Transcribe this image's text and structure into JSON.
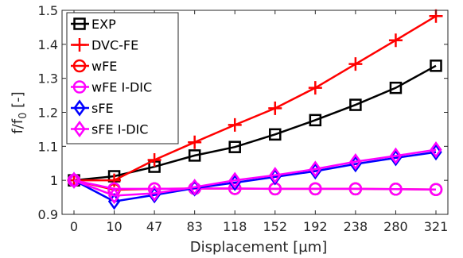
{
  "chart_data": {
    "type": "line",
    "xlabel": "Displacement [µm]",
    "ylabel": "f/f",
    "ylabel_subscript": "0",
    "ylabel_suffix": " [-]",
    "categories": [
      "0",
      "10",
      "47",
      "83",
      "118",
      "152",
      "192",
      "238",
      "280",
      "321"
    ],
    "ylim": [
      0.9,
      1.5
    ],
    "yticks": [
      "0.9",
      "1",
      "1.1",
      "1.2",
      "1.3",
      "1.4",
      "1.5"
    ],
    "grid": false,
    "legend_position": "top-left",
    "series": [
      {
        "name": "EXP",
        "color": "#000000",
        "marker": "square",
        "values": [
          1.0,
          1.012,
          1.04,
          1.073,
          1.098,
          1.135,
          1.177,
          1.222,
          1.272,
          1.337
        ]
      },
      {
        "name": "DVC-FE",
        "color": "#ff0000",
        "marker": "plus",
        "values": [
          1.0,
          1.0,
          1.06,
          1.112,
          1.163,
          1.212,
          1.272,
          1.342,
          1.412,
          1.483
        ]
      },
      {
        "name": "wFE",
        "color": "#ff0000",
        "marker": "circle",
        "values": [
          1.0,
          0.972,
          0.975,
          0.976,
          0.976,
          0.975,
          0.975,
          0.975,
          0.974,
          0.973
        ]
      },
      {
        "name": "wFE I-DIC",
        "color": "#ff00ff",
        "marker": "circle",
        "values": [
          1.0,
          0.975,
          0.975,
          0.976,
          0.976,
          0.975,
          0.975,
          0.975,
          0.974,
          0.973
        ]
      },
      {
        "name": "sFE",
        "color": "#0000ff",
        "marker": "diamond",
        "values": [
          1.0,
          0.938,
          0.957,
          0.977,
          0.993,
          1.01,
          1.027,
          1.048,
          1.066,
          1.083
        ]
      },
      {
        "name": "sFE I-DIC",
        "color": "#ff00ff",
        "marker": "diamond",
        "values": [
          1.0,
          0.955,
          0.962,
          0.98,
          1.0,
          1.015,
          1.033,
          1.055,
          1.072,
          1.09
        ]
      }
    ]
  }
}
